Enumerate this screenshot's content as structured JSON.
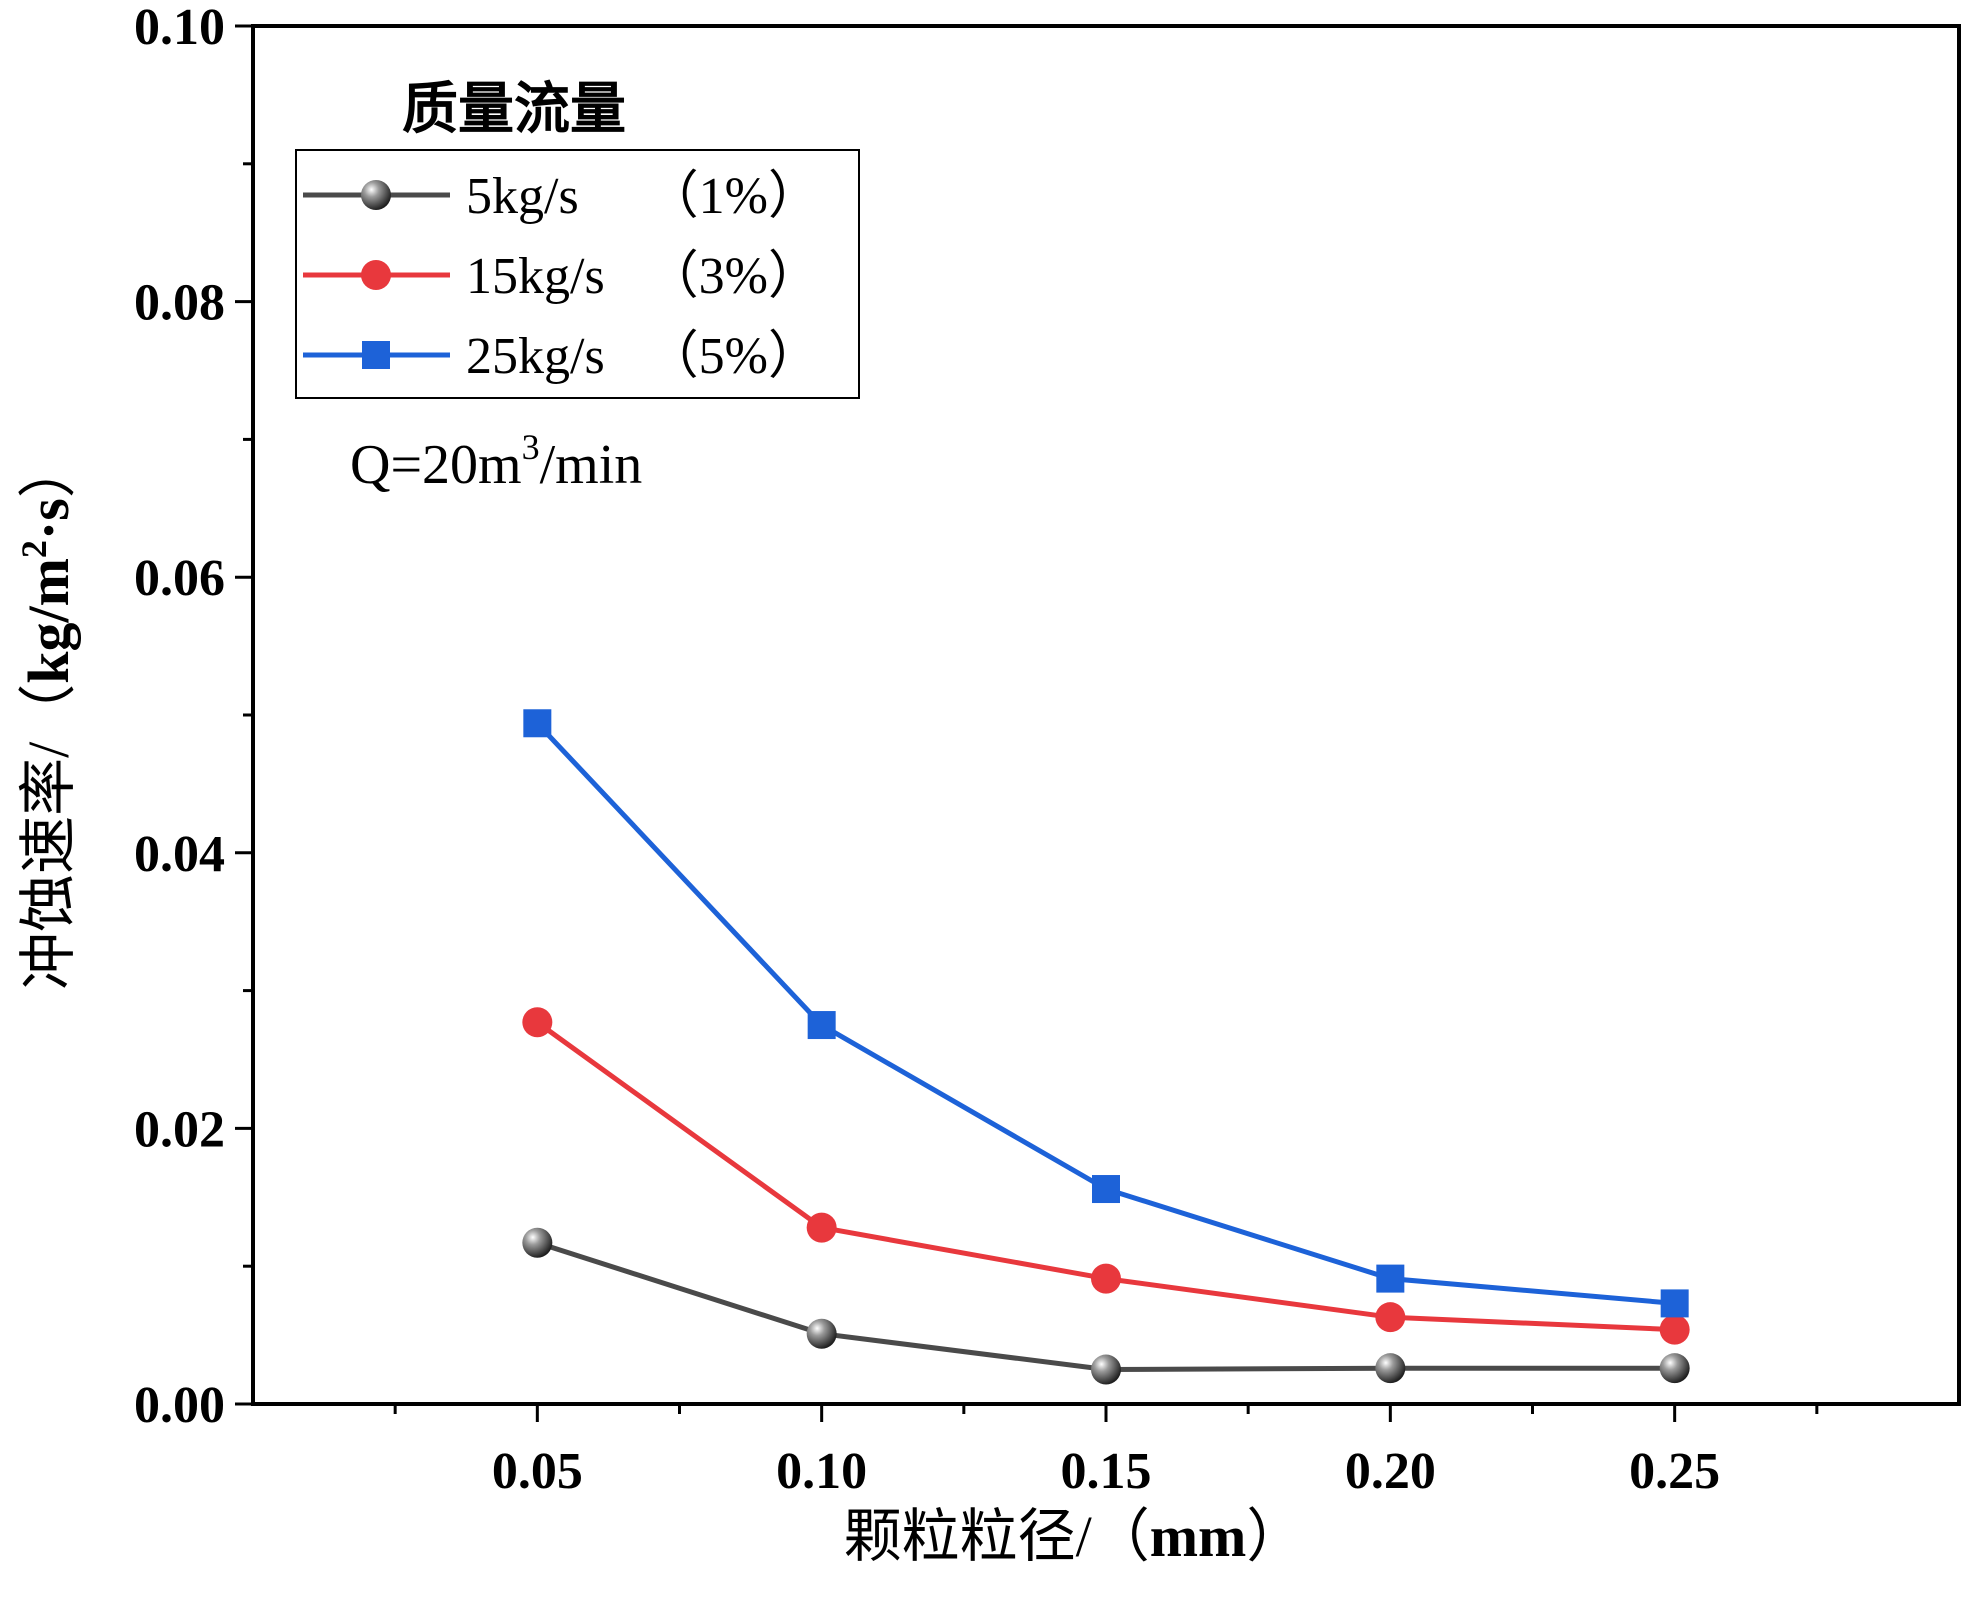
{
  "chart_data": {
    "type": "line",
    "title": "",
    "xlabel": "颗粒粒径/（mm）",
    "xlabel_parts": {
      "cn": "颗粒粒径/（",
      "unit": "mm",
      "close": "）"
    },
    "ylabel": "冲蚀速率/（kg/m²·s）",
    "ylabel_parts": {
      "cn": "冲蚀速率/（",
      "unit": "kg/m",
      "sup": "2",
      "unit2": "·s",
      "close": "）"
    },
    "xlim": [
      0.0,
      0.3
    ],
    "ylim": [
      0.0,
      0.1
    ],
    "x": [
      0.05,
      0.1,
      0.15,
      0.2,
      0.25
    ],
    "x_tick_labels": [
      "0.05",
      "0.10",
      "0.15",
      "0.20",
      "0.25"
    ],
    "y_ticks": [
      0.0,
      0.02,
      0.04,
      0.06,
      0.08,
      0.1
    ],
    "y_tick_labels": [
      "0.00",
      "0.02",
      "0.04",
      "0.06",
      "0.08",
      "0.10"
    ],
    "legend_title": "质量流量",
    "legend_position": "top-left",
    "series": [
      {
        "name": "5kg/s （1%）",
        "label": "5kg/s",
        "pct": "（1%）",
        "color": "#4a4a4a",
        "marker": "sphere",
        "values": [
          0.0117,
          0.0051,
          0.0025,
          0.0026,
          0.0026
        ]
      },
      {
        "name": "15kg/s（3%）",
        "label": "15kg/s",
        "pct": "（3%）",
        "color": "#e8383d",
        "marker": "circle",
        "values": [
          0.0277,
          0.0128,
          0.0091,
          0.0063,
          0.0054
        ]
      },
      {
        "name": "25kg/s（5%）",
        "label": "25kg/s",
        "pct": "（5%）",
        "color": "#1d62d8",
        "marker": "square",
        "values": [
          0.0494,
          0.0275,
          0.0156,
          0.0091,
          0.0073
        ]
      }
    ],
    "annotation": {
      "prefix": "Q=20m",
      "sup": "3",
      "suffix": "/min"
    }
  }
}
